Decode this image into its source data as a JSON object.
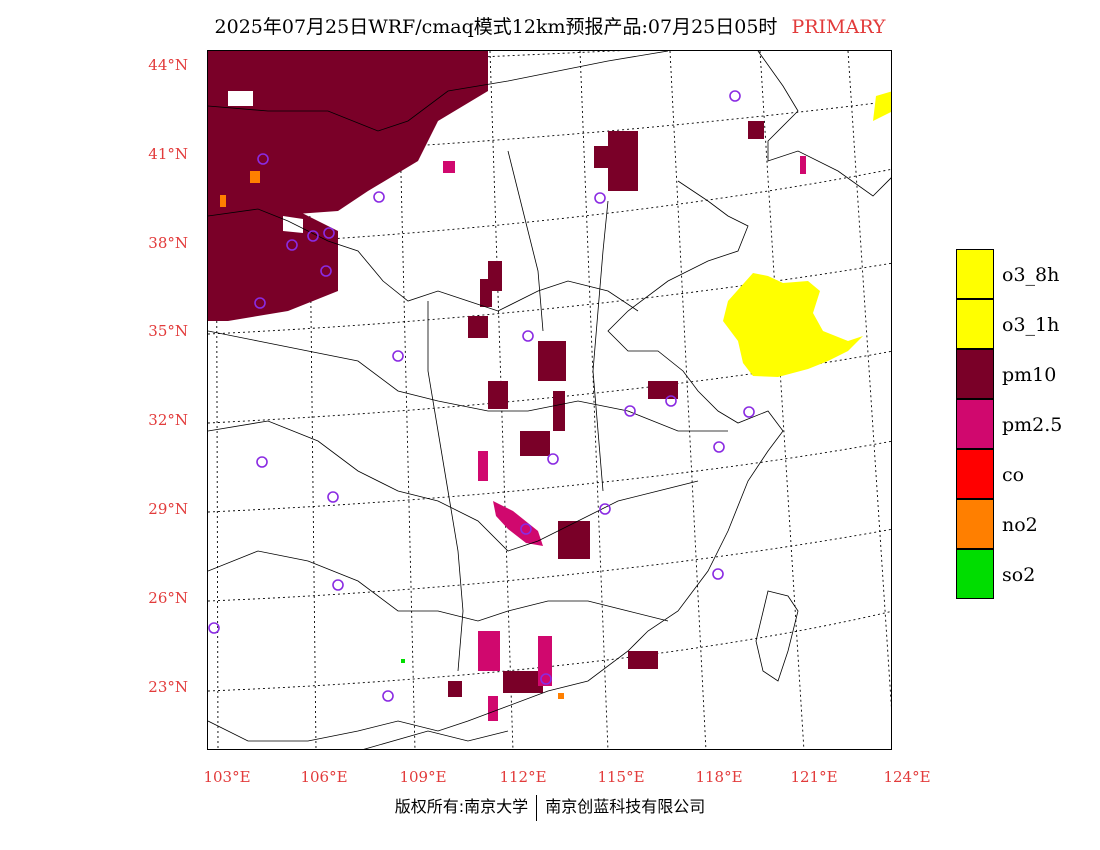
{
  "title": {
    "main": "2025年07月25日WRF/cmaq模式12km预报产品:07月25日05时",
    "tag": "PRIMARY"
  },
  "map": {
    "latitude_labels": [
      "44°N",
      "41°N",
      "38°N",
      "35°N",
      "32°N",
      "29°N",
      "26°N",
      "23°N"
    ],
    "longitude_labels": [
      "103°E",
      "106°E",
      "109°E",
      "112°E",
      "115°E",
      "118°E",
      "121°E",
      "124°E"
    ]
  },
  "legend": {
    "items": [
      {
        "label": "o3_8h",
        "color": "#ffff00"
      },
      {
        "label": "o3_1h",
        "color": "#ffff00"
      },
      {
        "label": "pm10",
        "color": "#7a0028"
      },
      {
        "label": "pm2.5",
        "color": "#d0086e"
      },
      {
        "label": "co",
        "color": "#ff0000"
      },
      {
        "label": "no2",
        "color": "#ff7f00"
      },
      {
        "label": "so2",
        "color": "#00dd00"
      }
    ]
  },
  "footer": {
    "left": "版权所有:南京大学",
    "right": "南京创蓝科技有限公司"
  },
  "colors": {
    "label_red": "#e23b3b",
    "pm10": "#7a0028",
    "pm25": "#d0086e",
    "o3": "#ffff00",
    "no2": "#ff7f00",
    "so2": "#00dd00",
    "station_ring": "#8a2be2"
  }
}
